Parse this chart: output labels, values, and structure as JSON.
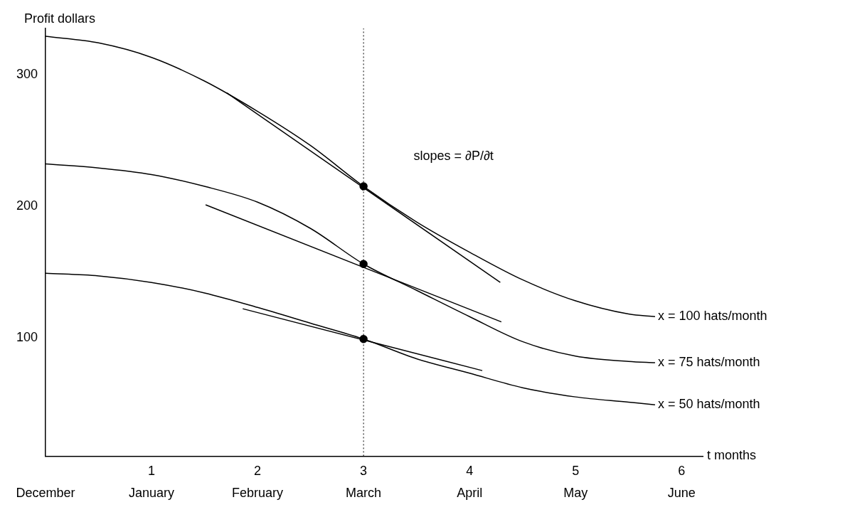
{
  "chart_data": {
    "type": "line",
    "xlabel": "t months",
    "ylabel": "Profit dollars",
    "xlim": [
      0,
      6.2
    ],
    "xticks": [
      {
        "value": 0,
        "label": null
      },
      1,
      2,
      3,
      4,
      5,
      6
    ],
    "ylim": [
      10,
      335
    ],
    "yticks": [
      100,
      200,
      300
    ],
    "grid": false,
    "legend": false,
    "marker": "none",
    "line_style": "solid",
    "series": [
      {
        "name": "x = 100 hats/month",
        "color": "#000000",
        "x": [
          0,
          0.5,
          1,
          1.5,
          2,
          2.5,
          3,
          3.5,
          4,
          4.5,
          5,
          5.5,
          5.75
        ],
        "values": [
          329,
          324,
          313,
          295,
          272,
          246,
          215,
          188,
          165,
          144,
          128,
          118,
          116
        ]
      },
      {
        "name": "x = 75 hats/month",
        "color": "#000000",
        "x": [
          0,
          0.5,
          1,
          1.5,
          2,
          2.5,
          3,
          3.5,
          4,
          4.5,
          5,
          5.5,
          5.75
        ],
        "values": [
          232,
          229,
          224,
          215,
          203,
          183,
          156,
          136,
          116,
          97,
          86,
          82,
          81
        ]
      },
      {
        "name": "x = 50 hats/month",
        "color": "#000000",
        "x": [
          0,
          0.5,
          1,
          1.5,
          2,
          2.5,
          3,
          3.5,
          4,
          4.5,
          5,
          5.5,
          5.75
        ],
        "values": [
          149,
          147,
          142,
          134,
          123,
          111,
          99,
          84,
          73,
          62,
          55,
          51,
          49
        ]
      },
      {
        "type": "line",
        "color": "#000000",
        "x": [
          1.71,
          4.29
        ],
        "values": [
          286,
          142
        ]
      },
      {
        "type": "line",
        "color": "#000000",
        "x": [
          1.51,
          4.3
        ],
        "values": [
          201,
          112
        ]
      },
      {
        "type": "line",
        "color": "#000000",
        "x": [
          1.86,
          4.12
        ],
        "values": [
          122,
          75
        ]
      },
      {
        "type": "scatter",
        "color": "#000000",
        "marker": "circle",
        "x": [
          3,
          3,
          3
        ],
        "values": [
          215,
          156,
          99
        ]
      }
    ],
    "ref_lines": [
      {
        "axis": "x",
        "value": 3,
        "color": "#000000",
        "line_style": "dotted"
      }
    ],
    "annotations": [
      "slopes = ∂P/∂t",
      "December",
      "January",
      "February",
      "March",
      "April",
      "May",
      "June"
    ]
  }
}
